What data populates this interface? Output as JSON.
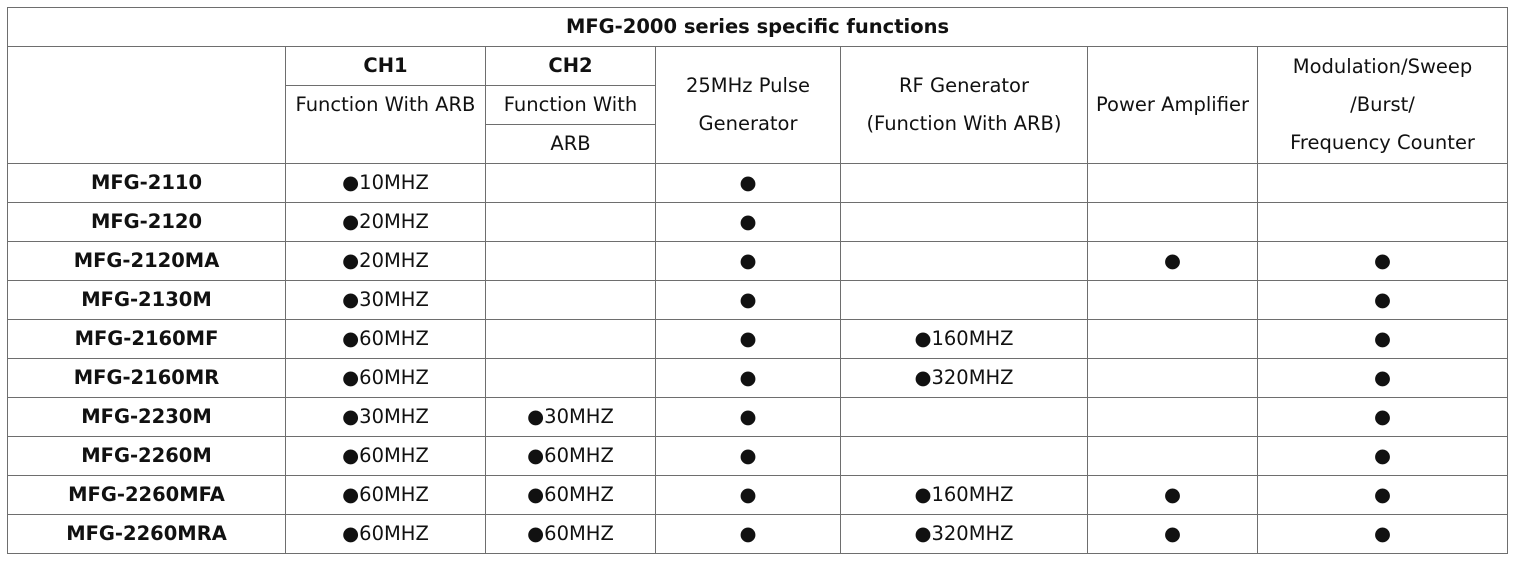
{
  "title": "MFG-2000 series specific functions",
  "headers": {
    "ch1": "CH1",
    "ch1_sub": "Function With ARB",
    "ch2": "CH2",
    "ch2_sub_line1": "Function With",
    "ch2_sub_line2": "ARB",
    "pulse_line1": "25MHz Pulse",
    "pulse_line2": "Generator",
    "rf_line1": "RF Generator",
    "rf_line2": "(Function With ARB)",
    "power": "Power Amplifier",
    "mod_line1": "Modulation/Sweep",
    "mod_line2": "/Burst/",
    "mod_line3": "Frequency Counter"
  },
  "rows": [
    {
      "model": "MFG-2110",
      "ch1": "●10MHZ",
      "ch2": "",
      "pulse": "●",
      "rf": "",
      "power": "",
      "mod": ""
    },
    {
      "model": "MFG-2120",
      "ch1": "●20MHZ",
      "ch2": "",
      "pulse": "●",
      "rf": "",
      "power": "",
      "mod": ""
    },
    {
      "model": "MFG-2120MA",
      "ch1": "●20MHZ",
      "ch2": "",
      "pulse": "●",
      "rf": "",
      "power": "●",
      "mod": "●"
    },
    {
      "model": "MFG-2130M",
      "ch1": "●30MHZ",
      "ch2": "",
      "pulse": "●",
      "rf": "",
      "power": "",
      "mod": "●"
    },
    {
      "model": "MFG-2160MF",
      "ch1": "●60MHZ",
      "ch2": "",
      "pulse": "●",
      "rf": "●160MHZ",
      "power": "",
      "mod": "●"
    },
    {
      "model": "MFG-2160MR",
      "ch1": "●60MHZ",
      "ch2": "",
      "pulse": "●",
      "rf": "●320MHZ",
      "power": "",
      "mod": "●"
    },
    {
      "model": "MFG-2230M",
      "ch1": "●30MHZ",
      "ch2": "●30MHZ",
      "pulse": "●",
      "rf": "",
      "power": "",
      "mod": "●"
    },
    {
      "model": "MFG-2260M",
      "ch1": "●60MHZ",
      "ch2": "●60MHZ",
      "pulse": "●",
      "rf": "",
      "power": "",
      "mod": "●"
    },
    {
      "model": "MFG-2260MFA",
      "ch1": "●60MHZ",
      "ch2": "●60MHZ",
      "pulse": "●",
      "rf": "●160MHZ",
      "power": "●",
      "mod": "●"
    },
    {
      "model": "MFG-2260MRA",
      "ch1": "●60MHZ",
      "ch2": "●60MHZ",
      "pulse": "●",
      "rf": "●320MHZ",
      "power": "●",
      "mod": "●"
    }
  ]
}
